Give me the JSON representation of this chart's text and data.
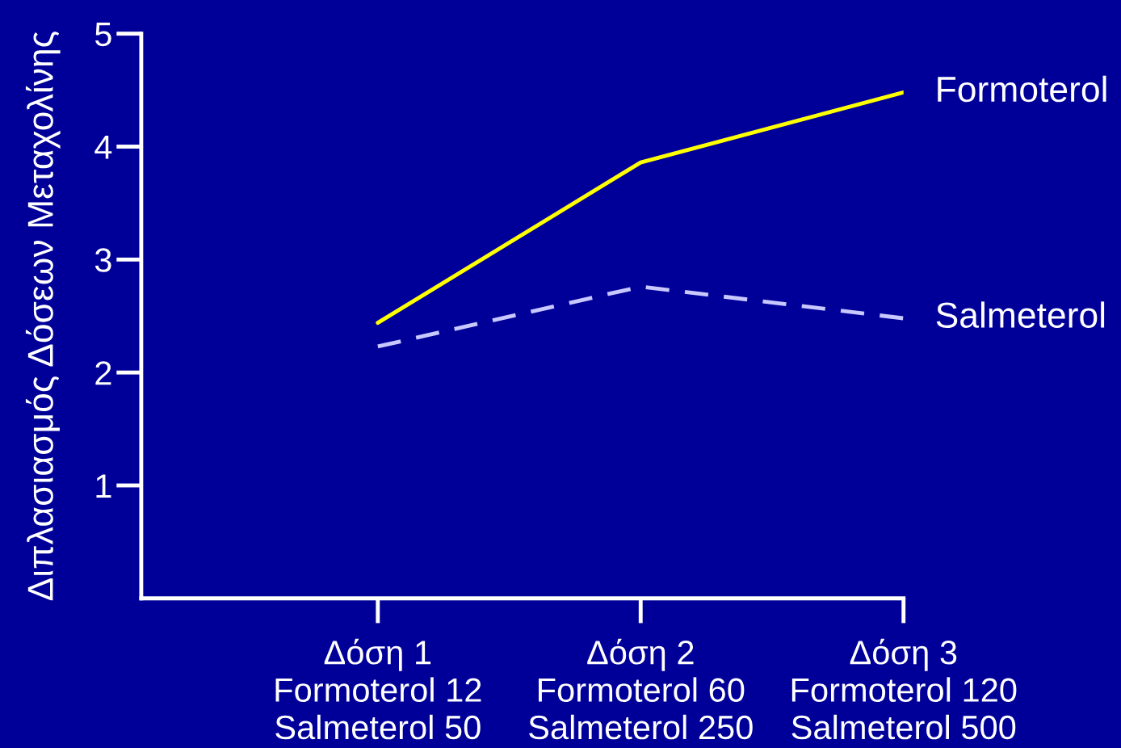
{
  "chart_data": {
    "type": "line",
    "ylabel": "Διπλασιασμός Δόσεων Μεταχολίνης",
    "categories": [
      "Δόση 1\nFormoterol 12\nSalmeterol 50",
      "Δόση 2\nFormoterol 60\nSalmeterol 250",
      "Δόση 3\nFormoterol 120\nSalmeterol 500"
    ],
    "series": [
      {
        "name": "Formoterol",
        "color": "#ffff00",
        "values": [
          2.44,
          3.86,
          4.48
        ],
        "line_style": "solid"
      },
      {
        "name": "Salmeterol",
        "color": "#c8c8ff",
        "values": [
          2.23,
          2.76,
          2.48
        ],
        "line_style": "dashed"
      }
    ],
    "ylim": [
      0,
      5
    ],
    "yticks": [
      1,
      2,
      3,
      4,
      5
    ],
    "grid": false,
    "legend": false,
    "marker": "none"
  }
}
